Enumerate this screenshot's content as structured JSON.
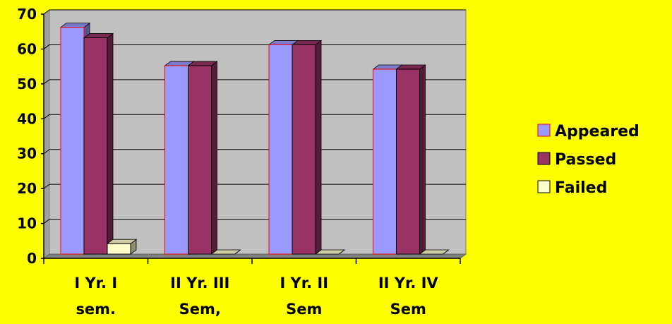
{
  "colors": {
    "page_background": "#FFFF00",
    "plot_background": "#C0C0C0",
    "grid": "#000000"
  },
  "chart_data": {
    "type": "bar",
    "style": "3d-clustered-column",
    "title": "",
    "xlabel": "",
    "ylabel": "",
    "ylim": [
      0,
      70
    ],
    "yticks": [
      0,
      10,
      20,
      30,
      40,
      50,
      60,
      70
    ],
    "grid": true,
    "legend_position": "right",
    "categories": [
      [
        "I Yr. I",
        "sem."
      ],
      [
        "II Yr. III",
        "Sem,"
      ],
      [
        "I Yr. II",
        "Sem"
      ],
      [
        "II Yr. IV",
        "Sem"
      ]
    ],
    "series": [
      {
        "name": "Appeared",
        "color": "#9999FF",
        "values": [
          65,
          54,
          60,
          53
        ]
      },
      {
        "name": "Passed",
        "color": "#993366",
        "values": [
          62,
          54,
          60,
          53
        ]
      },
      {
        "name": "Failed",
        "color": "#FFFFCC",
        "values": [
          3,
          0,
          0,
          0
        ]
      }
    ]
  }
}
